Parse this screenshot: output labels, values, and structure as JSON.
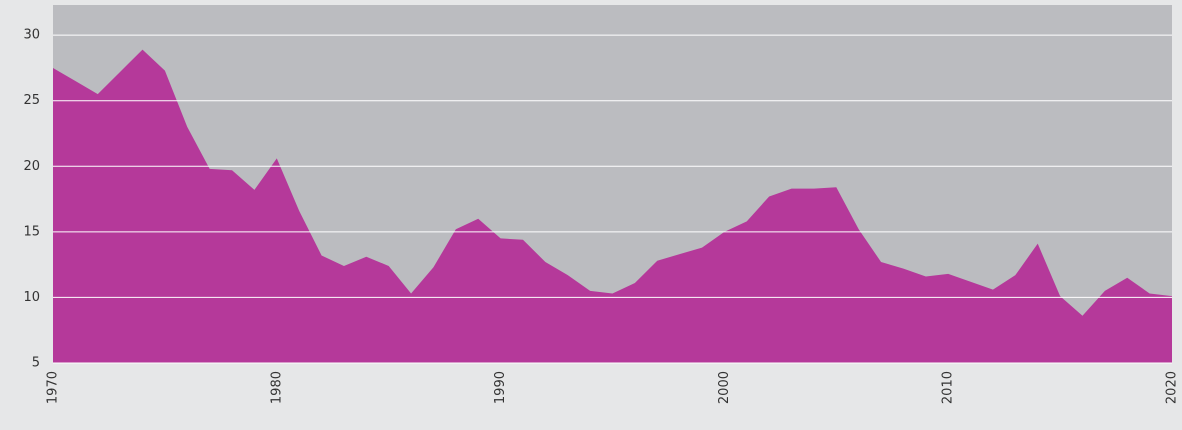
{
  "chart_data": {
    "type": "area",
    "x": [
      1970,
      1971,
      1972,
      1973,
      1974,
      1975,
      1976,
      1977,
      1978,
      1979,
      1980,
      1981,
      1982,
      1983,
      1984,
      1985,
      1986,
      1987,
      1988,
      1989,
      1990,
      1991,
      1992,
      1993,
      1994,
      1995,
      1996,
      1997,
      1998,
      1999,
      2000,
      2001,
      2002,
      2003,
      2004,
      2005,
      2006,
      2007,
      2008,
      2009,
      2010,
      2011,
      2012,
      2013,
      2014,
      2015,
      2016,
      2017,
      2018,
      2019,
      2020
    ],
    "values": [
      27.5,
      26.5,
      25.5,
      27.2,
      28.9,
      27.3,
      23,
      19.8,
      19.7,
      18.2,
      20.6,
      16.6,
      13.2,
      12.4,
      13.1,
      12.4,
      10.3,
      12.3,
      15.2,
      16,
      14.5,
      14.4,
      12.7,
      11.7,
      10.5,
      10.3,
      11.1,
      12.8,
      13.3,
      13.8,
      15,
      15.8,
      17.7,
      18.3,
      18.3,
      18.4,
      15.2,
      12.7,
      12.2,
      11.6,
      11.8,
      11.2,
      10.6,
      11.7,
      14.1,
      10.1,
      8.6,
      10.5,
      11.5,
      10.3,
      10.1
    ],
    "color": "#b5399a",
    "xlim": [
      1970,
      2020
    ],
    "xticks": [
      1970,
      1980,
      1990,
      2000,
      2010,
      2020
    ],
    "ylim": [
      5,
      32.3
    ],
    "yticks": [
      5,
      10,
      15,
      20,
      25,
      30
    ],
    "grid": true
  }
}
